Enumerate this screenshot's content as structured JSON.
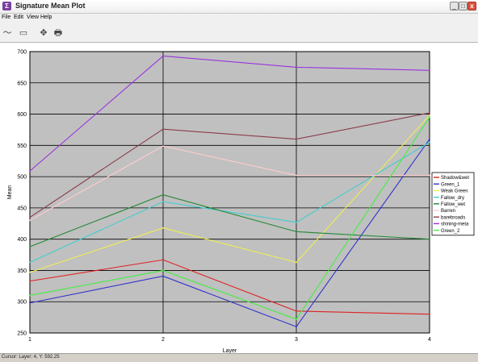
{
  "window": {
    "title": "Signature Mean Plot",
    "min_glyph": "_",
    "max_glyph": "□",
    "close_glyph": "x"
  },
  "menu": [
    "File",
    "Edit",
    "View",
    "Help"
  ],
  "toolbar": [
    {
      "icon": "line-tool-icon",
      "glyph": "〜"
    },
    {
      "icon": "select-icon",
      "glyph": "▭"
    },
    {
      "icon": "pan-icon",
      "glyph": "✥"
    },
    {
      "icon": "print-icon",
      "glyph": "🖶"
    }
  ],
  "status": {
    "text": "Cursor: Layer: 4, Y: 592.25"
  },
  "chart_data": {
    "type": "line",
    "xlabel": "Layer",
    "ylabel": "Mean",
    "x": [
      1,
      2,
      3,
      4
    ],
    "xlim": [
      1,
      4
    ],
    "ylim": [
      250,
      700
    ],
    "yticks": [
      250,
      300,
      350,
      400,
      450,
      500,
      550,
      600,
      650,
      700
    ],
    "grid": true,
    "background": "#c0c0c0",
    "legend_position": "right",
    "series": [
      {
        "name": "Shadow&wet",
        "color": "#e02020",
        "values": [
          333,
          367,
          285,
          280
        ]
      },
      {
        "name": "Green_1",
        "color": "#3333cc",
        "values": [
          298,
          341,
          260,
          560
        ]
      },
      {
        "name": "Weak Green",
        "color": "#eeee55",
        "values": [
          347,
          418,
          363,
          598
        ]
      },
      {
        "name": "Fallow_dry",
        "color": "#44cccc",
        "values": [
          363,
          460,
          427,
          555
        ]
      },
      {
        "name": "Fallow_wet",
        "color": "#228833",
        "values": [
          388,
          471,
          412,
          400
        ]
      },
      {
        "name": "Barren",
        "color": "#ffcccc",
        "values": [
          430,
          549,
          502,
          502
        ]
      },
      {
        "name": "barebroads",
        "color": "#8a3c4a",
        "values": [
          435,
          576,
          560,
          602
        ]
      },
      {
        "name": "shining-meta",
        "color": "#9933dd",
        "values": [
          509,
          693,
          675,
          670
        ]
      },
      {
        "name": "Green_2",
        "color": "#44ee44",
        "values": [
          310,
          350,
          272,
          595
        ]
      }
    ]
  }
}
